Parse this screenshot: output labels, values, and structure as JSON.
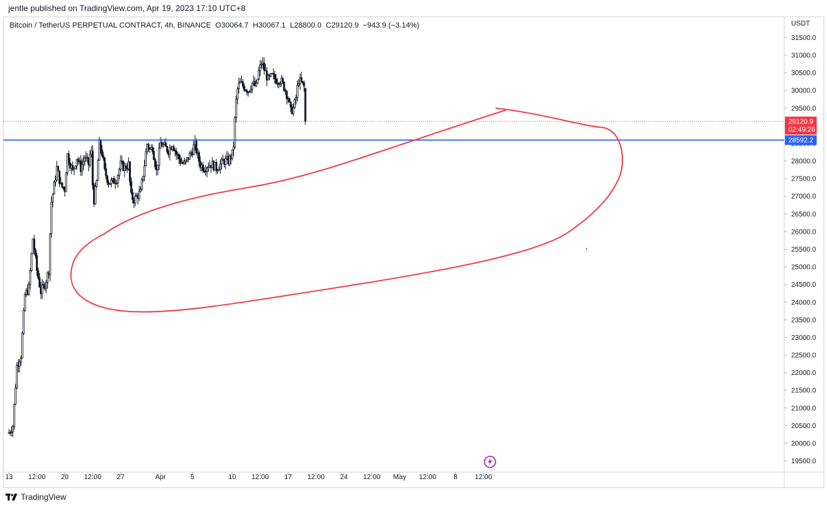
{
  "header": {
    "publisher_line": "jentle published on TradingView.com, Apr 19, 2023 17:10 UTC+8"
  },
  "legend": {
    "symbol": "Bitcoin / TetherUS PERPETUAL CONTRACT, 4h, BINANCE",
    "open_label": "O",
    "open": "30064.7",
    "high_label": "H",
    "high": "30067.1",
    "low_label": "L",
    "low": "28800.0",
    "close_label": "C",
    "close": "29120.9",
    "change": "−943.9 (−3.14%)"
  },
  "footer": {
    "brand": "TradingView"
  },
  "chart_data": {
    "type": "candlestick",
    "symbol": "Bitcoin / TetherUS PERPETUAL CONTRACT",
    "interval": "4h",
    "exchange": "BINANCE",
    "currency_label": "USDT",
    "y_axis": {
      "min": 19500,
      "max": 31500,
      "step": 500,
      "ticks": [
        "31500.0",
        "31000.0",
        "30500.0",
        "30000.0",
        "29500.0",
        "29000.0",
        "28500.0",
        "28000.0",
        "27500.0",
        "27000.0",
        "26500.0",
        "26000.0",
        "25500.0",
        "25000.0",
        "24500.0",
        "24000.0",
        "23500.0",
        "23000.0",
        "22500.0",
        "22000.0",
        "21500.0",
        "21000.0",
        "20500.0",
        "20000.0",
        "19500.0"
      ]
    },
    "x_axis": {
      "start_day": 13,
      "ticks": [
        {
          "day": 13,
          "label": "13"
        },
        {
          "day": 16.5,
          "label": "12:00"
        },
        {
          "day": 20,
          "label": "20"
        },
        {
          "day": 23.5,
          "label": "12:00"
        },
        {
          "day": 27,
          "label": "27"
        },
        {
          "day": 32,
          "label": "Apr"
        },
        {
          "day": 36,
          "label": "5"
        },
        {
          "day": 41,
          "label": "10"
        },
        {
          "day": 44.5,
          "label": "12:00"
        },
        {
          "day": 48,
          "label": "17"
        },
        {
          "day": 51.5,
          "label": "12:00"
        },
        {
          "day": 55,
          "label": "24"
        },
        {
          "day": 58.5,
          "label": "12:00"
        },
        {
          "day": 62,
          "label": "May"
        },
        {
          "day": 65.5,
          "label": "12:00"
        },
        {
          "day": 69,
          "label": "8"
        },
        {
          "day": 72.5,
          "label": "12:00"
        }
      ]
    },
    "price_anchors": [
      [
        13.0,
        20300
      ],
      [
        13.5,
        20500
      ],
      [
        14.0,
        22200
      ],
      [
        14.5,
        22500
      ],
      [
        15.0,
        24200
      ],
      [
        15.5,
        24400
      ],
      [
        16.0,
        25800
      ],
      [
        16.5,
        24900
      ],
      [
        17.0,
        24300
      ],
      [
        17.5,
        24500
      ],
      [
        18.0,
        24900
      ],
      [
        18.3,
        26800
      ],
      [
        18.6,
        27200
      ],
      [
        19.0,
        27800
      ],
      [
        19.5,
        27300
      ],
      [
        20.0,
        27200
      ],
      [
        20.3,
        28200
      ],
      [
        20.7,
        27900
      ],
      [
        21.0,
        27700
      ],
      [
        21.5,
        28100
      ],
      [
        22.0,
        27800
      ],
      [
        22.5,
        28100
      ],
      [
        23.0,
        27900
      ],
      [
        23.3,
        28400
      ],
      [
        23.6,
        26800
      ],
      [
        24.0,
        27400
      ],
      [
        24.3,
        28500
      ],
      [
        24.7,
        28200
      ],
      [
        25.0,
        27700
      ],
      [
        25.5,
        27400
      ],
      [
        26.0,
        27400
      ],
      [
        26.5,
        27500
      ],
      [
        27.0,
        27900
      ],
      [
        27.5,
        27800
      ],
      [
        28.0,
        27900
      ],
      [
        28.3,
        27000
      ],
      [
        28.7,
        26900
      ],
      [
        29.0,
        27000
      ],
      [
        29.5,
        27100
      ],
      [
        30.0,
        27900
      ],
      [
        30.3,
        28500
      ],
      [
        30.7,
        28300
      ],
      [
        31.0,
        28400
      ],
      [
        31.5,
        27700
      ],
      [
        32.0,
        28500
      ],
      [
        32.5,
        28400
      ],
      [
        33.0,
        28300
      ],
      [
        33.5,
        28500
      ],
      [
        34.0,
        28200
      ],
      [
        34.5,
        28000
      ],
      [
        35.0,
        27900
      ],
      [
        35.5,
        28100
      ],
      [
        36.0,
        28300
      ],
      [
        36.3,
        28500
      ],
      [
        36.7,
        28100
      ],
      [
        37.0,
        27900
      ],
      [
        37.5,
        27800
      ],
      [
        38.0,
        27900
      ],
      [
        38.5,
        27900
      ],
      [
        39.0,
        27800
      ],
      [
        39.5,
        27900
      ],
      [
        40.0,
        28000
      ],
      [
        40.5,
        28000
      ],
      [
        41.0,
        28200
      ],
      [
        41.2,
        28500
      ],
      [
        41.4,
        29500
      ],
      [
        41.7,
        30100
      ],
      [
        42.0,
        30200
      ],
      [
        42.5,
        30100
      ],
      [
        43.0,
        30000
      ],
      [
        43.5,
        30200
      ],
      [
        44.0,
        30100
      ],
      [
        44.3,
        30500
      ],
      [
        44.7,
        30800
      ],
      [
        45.0,
        30600
      ],
      [
        45.5,
        30300
      ],
      [
        46.0,
        30400
      ],
      [
        46.5,
        30300
      ],
      [
        47.0,
        30300
      ],
      [
        47.5,
        30100
      ],
      [
        48.0,
        29800
      ],
      [
        48.3,
        29400
      ],
      [
        48.7,
        29500
      ],
      [
        49.0,
        29800
      ],
      [
        49.3,
        30300
      ],
      [
        49.7,
        30200
      ],
      [
        50.0,
        30100
      ],
      [
        50.2,
        29120.9
      ]
    ],
    "horizontal_line": {
      "price": 28592.2,
      "label": "28592.2",
      "color": "#2962ff"
    },
    "last_price": {
      "price": 29120.9,
      "label": "29120.9",
      "countdown": "02:49:26",
      "color": "#f23645"
    },
    "drawings": [
      {
        "kind": "freehand",
        "color": "#f23645",
        "description": "trend line plus loop"
      }
    ],
    "up_color": "#131722",
    "down_color": "#131722"
  }
}
